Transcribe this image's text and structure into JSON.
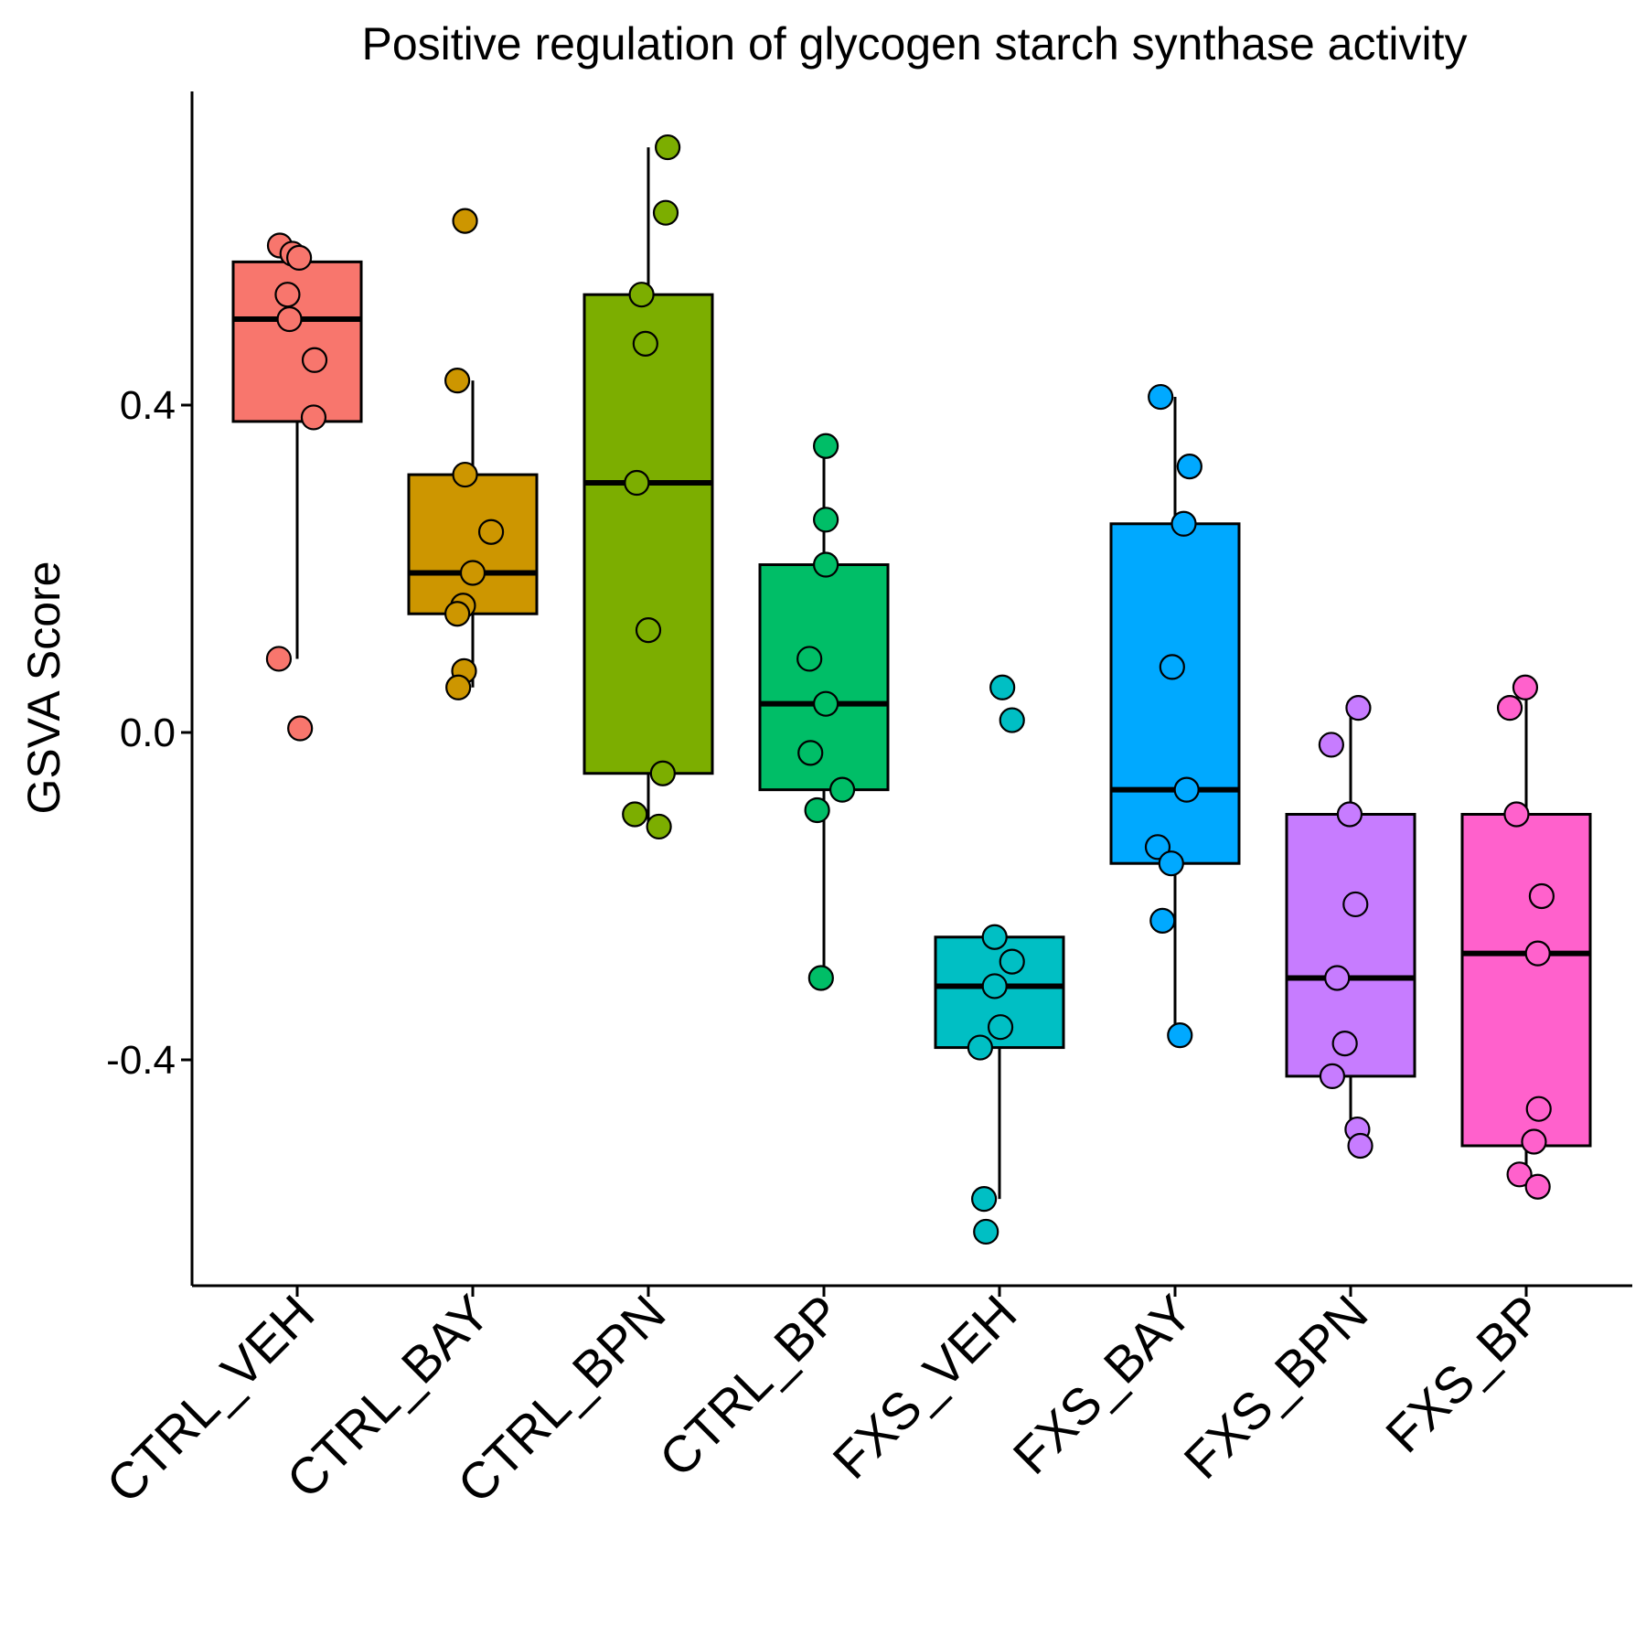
{
  "chart_data": {
    "type": "box",
    "title": "Positive regulation of glycogen starch synthase activity",
    "xlabel": "",
    "ylabel": "GSVA Score",
    "ylim": [
      -0.67,
      0.78
    ],
    "yticks": [
      0.4,
      0.0,
      -0.4
    ],
    "ytick_labels": [
      "0.4",
      "0.0",
      "-0.4"
    ],
    "grid": false,
    "legend": "none",
    "categories": [
      "CTRL_VEH",
      "CTRL_BAY",
      "CTRL_BPN",
      "CTRL_BP",
      "FXS_VEH",
      "FXS_BAY",
      "FXS_BPN",
      "FXS_BP"
    ],
    "colors": [
      "#F8766D",
      "#CD9600",
      "#7CAE00",
      "#00BE67",
      "#00BFC4",
      "#00A9FF",
      "#C77CFF",
      "#FF61CC"
    ],
    "boxes": [
      {
        "q1": 0.38,
        "median": 0.505,
        "q3": 0.575,
        "whisker_low": 0.09,
        "whisker_high": 0.575
      },
      {
        "q1": 0.145,
        "median": 0.195,
        "q3": 0.315,
        "whisker_low": 0.055,
        "whisker_high": 0.43
      },
      {
        "q1": -0.05,
        "median": 0.305,
        "q3": 0.535,
        "whisker_low": -0.115,
        "whisker_high": 0.715
      },
      {
        "q1": -0.07,
        "median": 0.035,
        "q3": 0.205,
        "whisker_low": -0.3,
        "whisker_high": 0.35
      },
      {
        "q1": -0.385,
        "median": -0.31,
        "q3": -0.25,
        "whisker_low": -0.57,
        "whisker_high": -0.25
      },
      {
        "q1": -0.16,
        "median": -0.07,
        "q3": 0.255,
        "whisker_low": -0.37,
        "whisker_high": 0.41
      },
      {
        "q1": -0.42,
        "median": -0.3,
        "q3": -0.1,
        "whisker_low": -0.505,
        "whisker_high": 0.03
      },
      {
        "q1": -0.505,
        "median": -0.27,
        "q3": -0.1,
        "whisker_low": -0.555,
        "whisker_high": 0.05
      }
    ],
    "points": [
      {
        "group": "CTRL_VEH",
        "y": [
          0.595,
          0.585,
          0.58,
          0.535,
          0.505,
          0.455,
          0.385,
          0.09,
          0.005
        ],
        "jitter": [
          -0.18,
          -0.05,
          0.02,
          -0.1,
          -0.08,
          0.18,
          0.17,
          -0.19,
          0.03
        ]
      },
      {
        "group": "CTRL_BAY",
        "y": [
          0.625,
          0.43,
          0.315,
          0.245,
          0.195,
          0.155,
          0.145,
          0.075,
          0.055
        ],
        "jitter": [
          -0.08,
          -0.16,
          -0.08,
          0.19,
          0.0,
          -0.1,
          -0.16,
          -0.09,
          -0.15
        ]
      },
      {
        "group": "CTRL_BPN",
        "y": [
          0.715,
          0.635,
          0.535,
          0.475,
          0.305,
          0.125,
          -0.05,
          -0.1,
          -0.115
        ],
        "jitter": [
          0.2,
          0.18,
          -0.07,
          -0.03,
          -0.12,
          0.0,
          0.15,
          -0.14,
          0.11
        ]
      },
      {
        "group": "CTRL_BP",
        "y": [
          0.35,
          0.26,
          0.205,
          0.09,
          0.035,
          -0.025,
          -0.07,
          -0.095,
          -0.3
        ],
        "jitter": [
          0.02,
          0.02,
          0.02,
          -0.15,
          0.02,
          -0.14,
          0.19,
          -0.07,
          -0.03
        ]
      },
      {
        "group": "FXS_VEH",
        "y": [
          0.055,
          0.015,
          -0.25,
          -0.28,
          -0.31,
          -0.36,
          -0.385,
          -0.57,
          -0.61
        ],
        "jitter": [
          0.03,
          0.13,
          -0.05,
          0.13,
          -0.05,
          0.01,
          -0.2,
          -0.16,
          -0.14
        ]
      },
      {
        "group": "FXS_BAY",
        "y": [
          0.41,
          0.325,
          0.255,
          0.08,
          -0.07,
          -0.14,
          -0.16,
          -0.23,
          -0.37
        ],
        "jitter": [
          -0.15,
          0.15,
          0.09,
          -0.03,
          0.12,
          -0.18,
          -0.04,
          -0.13,
          0.05
        ]
      },
      {
        "group": "FXS_BPN",
        "y": [
          0.03,
          -0.015,
          -0.1,
          -0.21,
          -0.3,
          -0.38,
          -0.42,
          -0.485,
          -0.505
        ],
        "jitter": [
          0.08,
          -0.2,
          -0.01,
          0.05,
          -0.14,
          -0.06,
          -0.19,
          0.07,
          0.1
        ]
      },
      {
        "group": "FXS_BP",
        "y": [
          0.055,
          0.03,
          -0.1,
          -0.2,
          -0.27,
          -0.46,
          -0.5,
          -0.54,
          -0.555
        ],
        "jitter": [
          -0.01,
          -0.17,
          -0.1,
          0.16,
          0.12,
          0.13,
          0.08,
          -0.07,
          0.12
        ]
      }
    ]
  }
}
